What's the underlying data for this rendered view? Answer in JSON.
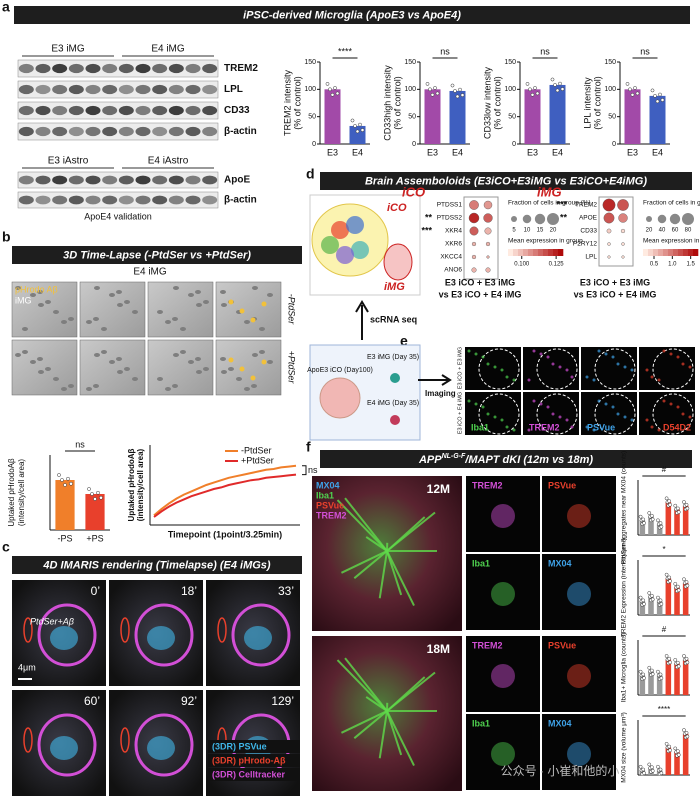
{
  "panel_labels": [
    "a",
    "b",
    "c",
    "d",
    "e",
    "f"
  ],
  "a": {
    "title": "iPSC-derived Microglia (ApoE3 vs ApoE4)",
    "blot1": {
      "groups": [
        "E3 iMG",
        "E4 iMG"
      ],
      "bands": [
        "TREM2",
        "LPL",
        "CD33",
        "β-actin"
      ]
    },
    "blot2": {
      "groups": [
        "E3 iAstro",
        "E4 iAstro"
      ],
      "bands": [
        "ApoE",
        "β-actin"
      ],
      "caption": "ApoE4 validation"
    },
    "charts": [
      {
        "type": "bar",
        "y_label": "TREM2 intensity",
        "y_unit": "(% of control)",
        "categories": [
          "E3",
          "E4"
        ],
        "values": [
          100,
          33
        ],
        "colors": [
          "#a24aa8",
          "#3f5fc0"
        ],
        "ylim": [
          0,
          150
        ],
        "yticks": [
          0,
          50,
          100,
          150
        ],
        "significance": "****"
      },
      {
        "type": "bar",
        "y_label": "CD33high intensity",
        "y_unit": "(% of control)",
        "categories": [
          "E3",
          "E4"
        ],
        "values": [
          100,
          97
        ],
        "colors": [
          "#a24aa8",
          "#3f5fc0"
        ],
        "ylim": [
          0,
          150
        ],
        "yticks": [
          0,
          50,
          100,
          150
        ],
        "significance": "ns"
      },
      {
        "type": "bar",
        "y_label": "CD33low intensity",
        "y_unit": "(% of control)",
        "categories": [
          "E3",
          "E4"
        ],
        "values": [
          100,
          108
        ],
        "colors": [
          "#a24aa8",
          "#3f5fc0"
        ],
        "ylim": [
          0,
          150
        ],
        "yticks": [
          0,
          50,
          100,
          150
        ],
        "significance": "ns"
      },
      {
        "type": "bar",
        "y_label": "LPL intensity",
        "y_unit": "(% of control)",
        "categories": [
          "E3",
          "E4"
        ],
        "values": [
          100,
          88
        ],
        "colors": [
          "#a24aa8",
          "#3f5fc0"
        ],
        "ylim": [
          0,
          150
        ],
        "yticks": [
          0,
          50,
          100,
          150
        ],
        "significance": "ns"
      }
    ]
  },
  "b": {
    "title": "3D Time-Lapse (-PtdSer vs +PtdSer)",
    "group": "E4 iMG",
    "overlay": [
      "pHrodo Aβ",
      "iMG"
    ],
    "rows": [
      "-PtdSer",
      "+PtdSer"
    ],
    "bar_chart": {
      "type": "bar",
      "y_label": "Uptaked pHrodoAβ",
      "y_unit": "(intensity/cell area)",
      "categories": [
        "-PS",
        "+PS"
      ],
      "values": [
        1.0,
        0.72
      ],
      "colors": [
        "#f07f2a",
        "#e8402c"
      ],
      "ylim": [
        0,
        1.5
      ],
      "significance": "ns"
    },
    "line_chart": {
      "type": "line",
      "y_label": "Uptaked pHrodoAβ",
      "y_unit": "(intensity/cell area)",
      "x_label": "Timepoint (1point/3.25min)",
      "ylim": [
        0,
        1
      ],
      "significance": "ns",
      "series": [
        {
          "name": "-PtdSer",
          "color": "#f07f2a",
          "values": [
            0.12,
            0.2,
            0.27,
            0.33,
            0.38,
            0.42,
            0.46,
            0.5,
            0.53,
            0.56,
            0.59,
            0.61,
            0.63,
            0.65,
            0.67,
            0.69,
            0.7,
            0.72,
            0.73,
            0.74
          ]
        },
        {
          "name": "+PtdSer",
          "color": "#e02a2a",
          "values": [
            0.1,
            0.17,
            0.23,
            0.28,
            0.32,
            0.36,
            0.39,
            0.42,
            0.45,
            0.47,
            0.5,
            0.52,
            0.54,
            0.56,
            0.57,
            0.59,
            0.6,
            0.61,
            0.62,
            0.63
          ]
        }
      ]
    }
  },
  "c": {
    "title": "4D IMARIS rendering (Timelapse) (E4 iMGs)",
    "times": [
      "0’",
      "18’",
      "33’",
      "60’",
      "92’",
      "129’"
    ],
    "annotation": "PtdSer+Aβ",
    "scale": "4μm",
    "legend": [
      {
        "name": "(3DR) PSVue",
        "color": "#3fb6e8"
      },
      {
        "name": "(3DR) pHrodo-Aβ",
        "color": "#e8402c"
      },
      {
        "name": "(3DR) Celltracker",
        "color": "#d24fd6"
      }
    ]
  },
  "d": {
    "title": "Brain Assemboloids (E3iCO+E3iMG vs E3iCO+E4iMG)",
    "umap_labels": [
      "iCO",
      "iMG"
    ],
    "arrow_label": "scRNA seq",
    "organoid": "ApoE3 iCO (Day100)",
    "microglia": [
      "E3 iMG (Day 35)",
      "E4 iMG (Day 35)"
    ],
    "imaging": "Imaging",
    "dotplots": [
      {
        "title": "iCO",
        "genes": [
          "PTDSS1",
          "PTDSS2",
          "XKR4",
          "XKR6",
          "XKCC4",
          "ANO6"
        ],
        "stars": [
          "",
          "**",
          "***",
          "",
          "",
          ""
        ],
        "fraction": [
          [
            12,
            14,
            10,
            2,
            2,
            3
          ],
          [
            9,
            11,
            6,
            2,
            1,
            3
          ]
        ],
        "expression": [
          [
            0.11,
            0.125,
            0.115,
            0.1,
            0.1,
            0.1
          ],
          [
            0.105,
            0.115,
            0.1,
            0.1,
            0.1,
            0.1
          ]
        ],
        "size_title": "Fraction of cells in group (%)",
        "sizes": [
          5,
          10,
          15,
          20
        ],
        "color_title": "Mean expression in group",
        "color_ticks": [
          {
            "value": 0.1,
            "label": "0.100"
          },
          0.125
        ],
        "clim": [
          0.09,
          0.13
        ],
        "caption": [
          "E3 iCO + E3 iMG",
          "vs E3 iCO + E4 iMG"
        ]
      },
      {
        "title": "iMG",
        "genes": [
          "TREM2",
          "APOE",
          "CD33",
          "P2RY12",
          "LPL"
        ],
        "stars": [
          "***",
          "**",
          "",
          "",
          ""
        ],
        "fraction": [
          [
            85,
            60,
            10,
            5,
            4
          ],
          [
            70,
            45,
            8,
            5,
            4
          ]
        ],
        "expression": [
          [
            1.5,
            1.2,
            0.4,
            0.3,
            0.3
          ],
          [
            1.2,
            0.9,
            0.3,
            0.3,
            0.3
          ]
        ],
        "size_title": "Fraction of cells in group (%)",
        "sizes": [
          20,
          40,
          60,
          80
        ],
        "color_title": "Mean expression in group",
        "color_ticks": [
          0.5,
          {
            "value": 1,
            "label": "1.0"
          },
          1.5
        ],
        "clim": [
          0.2,
          1.7
        ],
        "caption": [
          "E3 iCO + E3 iMG",
          "vs E3 iCO + E4 iMG"
        ]
      }
    ]
  },
  "e": {
    "rows": [
      "E3 iCO + E3 iMG",
      "E3 iCO + E4 iMG"
    ],
    "stains": [
      {
        "name": "Iba1",
        "color": "#4fd14f"
      },
      {
        "name": "TREM2",
        "color": "#d24fd6"
      },
      {
        "name": "PSVue",
        "color": "#3fa2e8"
      },
      {
        "name": "D54D2",
        "color": "#e8402c"
      }
    ]
  },
  "f": {
    "title": "APP",
    "title_sup": "NL-G-F",
    "title_rest": "/MAPT dKI (12m vs 18m)",
    "ages": [
      "12M",
      "18M"
    ],
    "merged_channels": [
      {
        "name": "MX04",
        "color": "#3fa2e8"
      },
      {
        "name": "Iba1",
        "color": "#4fd14f"
      },
      {
        "name": "PSVue",
        "color": "#e8402c"
      },
      {
        "name": "TREM2",
        "color": "#d24fd6"
      }
    ],
    "tiles": [
      [
        "TREM2",
        "PSVue",
        "Iba1",
        "MX04"
      ],
      [
        "TREM2",
        "PSVue",
        "Iba1",
        "MX04"
      ]
    ],
    "charts": [
      {
        "type": "bar",
        "y_label": "PtdSer-aggregates near MX04 (counts)",
        "values": [
          4,
          5,
          3,
          9,
          7,
          8
        ],
        "ylim": [
          0,
          15
        ],
        "significance": "#"
      },
      {
        "type": "bar",
        "y_label": "TREM2 Expression (intensity/μm²)",
        "values": [
          3,
          4,
          3,
          8,
          6,
          7
        ],
        "ylim": [
          0,
          12
        ],
        "significance": "*"
      },
      {
        "type": "bar",
        "y_label": "Iba1+ Microglia (counts)",
        "values": [
          5,
          6,
          5,
          9,
          8,
          9
        ],
        "ylim": [
          0,
          14
        ],
        "significance": "#"
      },
      {
        "type": "bar",
        "y_label": "MX04 size (volume μm³)",
        "values": [
          1,
          1.5,
          1,
          6,
          5,
          9
        ],
        "ylim": [
          0,
          12
        ],
        "significance": "****"
      }
    ],
    "watermark": "公众号 · 小崔和他的小"
  }
}
